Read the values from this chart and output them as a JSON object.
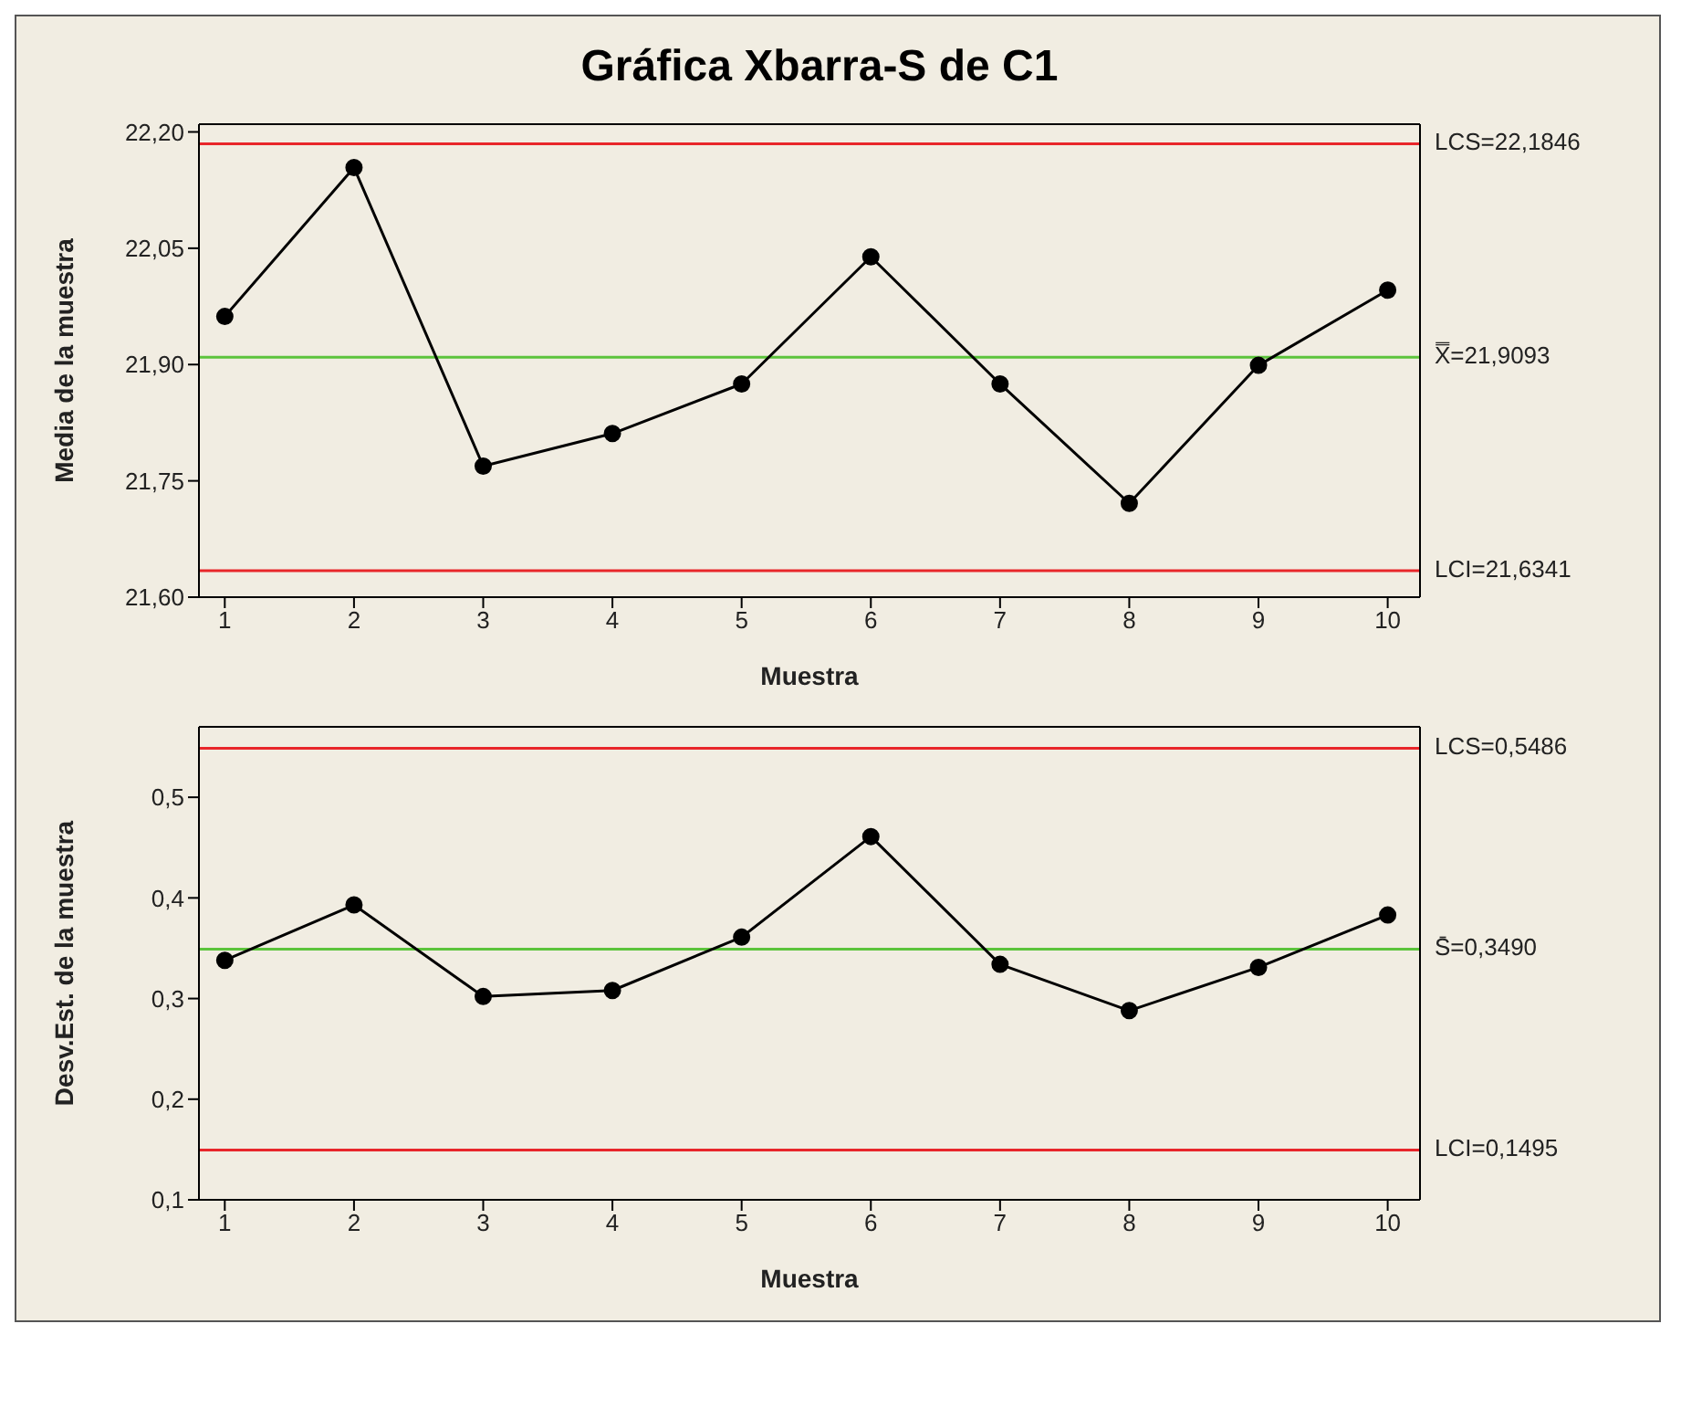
{
  "chart_data": [
    {
      "type": "line",
      "title": "Gráfica Xbarra-S de C1",
      "xlabel": "Muestra",
      "ylabel": "Media de la muestra",
      "x": [
        1,
        2,
        3,
        4,
        5,
        6,
        7,
        8,
        9,
        10
      ],
      "series": [
        {
          "color": "#000000",
          "values": [
            21.962,
            22.154,
            21.769,
            21.811,
            21.875,
            22.039,
            21.875,
            21.721,
            21.899,
            21.996
          ]
        }
      ],
      "xlim": [
        0.8,
        10.25
      ],
      "xticks": [
        1,
        2,
        3,
        4,
        5,
        6,
        7,
        8,
        9,
        10
      ],
      "ylim": [
        21.6,
        22.21
      ],
      "yticks": [
        {
          "value": 21.6,
          "label": "21,60"
        },
        {
          "value": 21.75,
          "label": "21,75"
        },
        {
          "value": 21.9,
          "label": "21,90"
        },
        {
          "value": 22.05,
          "label": "22,05"
        },
        {
          "value": 22.2,
          "label": "22,20"
        }
      ],
      "ref_lines": [
        {
          "axis": "y",
          "value": 22.1846,
          "label": "LCS=22,1846",
          "color": "#e8262a"
        },
        {
          "axis": "y",
          "value": 21.9093,
          "label": "X̿=21,9093",
          "color": "#5cc43c"
        },
        {
          "axis": "y",
          "value": 21.6341,
          "label": "LCI=21,6341",
          "color": "#e8262a"
        }
      ],
      "marker": "circle"
    },
    {
      "type": "line",
      "xlabel": "Muestra",
      "ylabel": "Desv.Est. de la muestra",
      "x": [
        1,
        2,
        3,
        4,
        5,
        6,
        7,
        8,
        9,
        10
      ],
      "series": [
        {
          "color": "#000000",
          "values": [
            0.338,
            0.393,
            0.302,
            0.308,
            0.361,
            0.461,
            0.334,
            0.288,
            0.331,
            0.383
          ]
        }
      ],
      "xlim": [
        0.8,
        10.25
      ],
      "xticks": [
        1,
        2,
        3,
        4,
        5,
        6,
        7,
        8,
        9,
        10
      ],
      "ylim": [
        0.1,
        0.57
      ],
      "yticks": [
        {
          "value": 0.1,
          "label": "0,1"
        },
        {
          "value": 0.2,
          "label": "0,2"
        },
        {
          "value": 0.3,
          "label": "0,3"
        },
        {
          "value": 0.4,
          "label": "0,4"
        },
        {
          "value": 0.5,
          "label": "0,5"
        }
      ],
      "ref_lines": [
        {
          "axis": "y",
          "value": 0.5486,
          "label": "LCS=0,5486",
          "color": "#e8262a"
        },
        {
          "axis": "y",
          "value": 0.349,
          "label": "S̄=0,3490",
          "color": "#5cc43c"
        },
        {
          "axis": "y",
          "value": 0.1495,
          "label": "LCI=0,1495",
          "color": "#e8262a"
        }
      ],
      "marker": "circle"
    }
  ]
}
